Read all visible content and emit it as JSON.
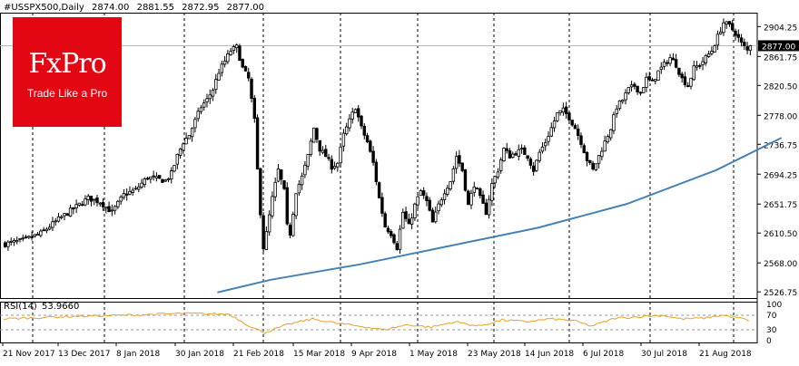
{
  "header": {
    "symbol": "#USSPX500,Daily",
    "open": "2874.00",
    "high": "2881.55",
    "low": "2872.95",
    "close": "2877.00"
  },
  "logo": {
    "brand": "FxPro",
    "tagline": "Trade Like a Pro"
  },
  "rsi": {
    "label": "RSI(14)",
    "value": "53.9660",
    "levels": [
      "100",
      "70",
      "30",
      "0"
    ]
  },
  "colors": {
    "ma": "#4682b4",
    "rsi": "#e8a020",
    "candle": "#000000",
    "background": "#ffffff"
  },
  "chart_data": {
    "type": "candlestick",
    "title": "#USSPX500,Daily",
    "ylim": [
      2518,
      2924
    ],
    "y_ticks": [
      "2904.25",
      "2861.75",
      "2820.50",
      "2778.00",
      "2736.75",
      "2694.25",
      "2651.75",
      "2610.50",
      "2568.00",
      "2526.75"
    ],
    "current_price": "2877.00",
    "x_ticks": [
      "21 Nov 2017",
      "13 Dec 2017",
      "8 Jan 2018",
      "30 Jan 2018",
      "21 Feb 2018",
      "15 Mar 2018",
      "9 Apr 2018",
      "1 May 2018",
      "23 May 2018",
      "14 Jun 2018",
      "6 Jul 2018",
      "30 Jul 2018",
      "21 Aug 2018"
    ],
    "close_path": [
      [
        0,
        2595
      ],
      [
        6,
        2600
      ],
      [
        12,
        2610
      ],
      [
        18,
        2630
      ],
      [
        24,
        2648
      ],
      [
        28,
        2660
      ],
      [
        32,
        2655
      ],
      [
        36,
        2640
      ],
      [
        40,
        2665
      ],
      [
        44,
        2672
      ],
      [
        48,
        2690
      ],
      [
        50,
        2688
      ],
      [
        54,
        2685
      ],
      [
        56,
        2695
      ],
      [
        58,
        2720
      ],
      [
        60,
        2740
      ],
      [
        62,
        2750
      ],
      [
        64,
        2770
      ],
      [
        66,
        2790
      ],
      [
        68,
        2800
      ],
      [
        70,
        2815
      ],
      [
        72,
        2840
      ],
      [
        74,
        2855
      ],
      [
        76,
        2870
      ],
      [
        78,
        2875
      ],
      [
        80,
        2845
      ],
      [
        82,
        2830
      ],
      [
        84,
        2770
      ],
      [
        85,
        2700
      ],
      [
        86,
        2640
      ],
      [
        87,
        2590
      ],
      [
        88,
        2610
      ],
      [
        90,
        2660
      ],
      [
        92,
        2700
      ],
      [
        94,
        2670
      ],
      [
        95,
        2620
      ],
      [
        96,
        2610
      ],
      [
        98,
        2670
      ],
      [
        100,
        2690
      ],
      [
        102,
        2720
      ],
      [
        104,
        2760
      ],
      [
        106,
        2730
      ],
      [
        108,
        2720
      ],
      [
        110,
        2705
      ],
      [
        112,
        2710
      ],
      [
        114,
        2750
      ],
      [
        116,
        2770
      ],
      [
        118,
        2790
      ],
      [
        120,
        2760
      ],
      [
        122,
        2740
      ],
      [
        124,
        2710
      ],
      [
        126,
        2660
      ],
      [
        128,
        2620
      ],
      [
        130,
        2610
      ],
      [
        132,
        2590
      ],
      [
        134,
        2640
      ],
      [
        136,
        2620
      ],
      [
        138,
        2650
      ],
      [
        140,
        2670
      ],
      [
        142,
        2655
      ],
      [
        144,
        2625
      ],
      [
        146,
        2650
      ],
      [
        148,
        2670
      ],
      [
        150,
        2685
      ],
      [
        152,
        2720
      ],
      [
        154,
        2700
      ],
      [
        156,
        2650
      ],
      [
        158,
        2680
      ],
      [
        160,
        2660
      ],
      [
        162,
        2640
      ],
      [
        164,
        2680
      ],
      [
        166,
        2700
      ],
      [
        168,
        2730
      ],
      [
        170,
        2720
      ],
      [
        172,
        2725
      ],
      [
        174,
        2728
      ],
      [
        176,
        2720
      ],
      [
        178,
        2700
      ],
      [
        180,
        2725
      ],
      [
        182,
        2740
      ],
      [
        184,
        2760
      ],
      [
        186,
        2780
      ],
      [
        188,
        2785
      ],
      [
        190,
        2775
      ],
      [
        192,
        2760
      ],
      [
        194,
        2740
      ],
      [
        196,
        2715
      ],
      [
        198,
        2700
      ],
      [
        200,
        2720
      ],
      [
        202,
        2740
      ],
      [
        204,
        2760
      ],
      [
        206,
        2790
      ],
      [
        208,
        2800
      ],
      [
        210,
        2815
      ],
      [
        212,
        2820
      ],
      [
        214,
        2810
      ],
      [
        216,
        2830
      ],
      [
        218,
        2825
      ],
      [
        220,
        2840
      ],
      [
        222,
        2850
      ],
      [
        224,
        2860
      ],
      [
        226,
        2850
      ],
      [
        228,
        2830
      ],
      [
        230,
        2820
      ],
      [
        232,
        2845
      ],
      [
        234,
        2850
      ],
      [
        236,
        2860
      ],
      [
        238,
        2870
      ],
      [
        240,
        2890
      ],
      [
        242,
        2910
      ],
      [
        244,
        2905
      ],
      [
        246,
        2895
      ],
      [
        248,
        2880
      ],
      [
        250,
        2870
      ],
      [
        251,
        2877
      ]
    ],
    "ma_path": [
      [
        72,
        2526
      ],
      [
        78,
        2532
      ],
      [
        90,
        2544
      ],
      [
        120,
        2566
      ],
      [
        150,
        2592
      ],
      [
        180,
        2618
      ],
      [
        210,
        2652
      ],
      [
        240,
        2700
      ],
      [
        262,
        2746
      ]
    ],
    "rsi_path": [
      [
        0,
        60
      ],
      [
        20,
        66
      ],
      [
        40,
        70
      ],
      [
        60,
        75
      ],
      [
        76,
        73
      ],
      [
        84,
        35
      ],
      [
        88,
        22
      ],
      [
        96,
        45
      ],
      [
        104,
        60
      ],
      [
        112,
        48
      ],
      [
        120,
        40
      ],
      [
        128,
        30
      ],
      [
        136,
        44
      ],
      [
        144,
        37
      ],
      [
        152,
        52
      ],
      [
        160,
        40
      ],
      [
        168,
        57
      ],
      [
        176,
        52
      ],
      [
        184,
        60
      ],
      [
        192,
        55
      ],
      [
        198,
        40
      ],
      [
        206,
        62
      ],
      [
        214,
        66
      ],
      [
        222,
        70
      ],
      [
        228,
        60
      ],
      [
        236,
        62
      ],
      [
        242,
        70
      ],
      [
        248,
        62
      ],
      [
        252,
        54
      ]
    ],
    "rsi_current": 53.966
  }
}
